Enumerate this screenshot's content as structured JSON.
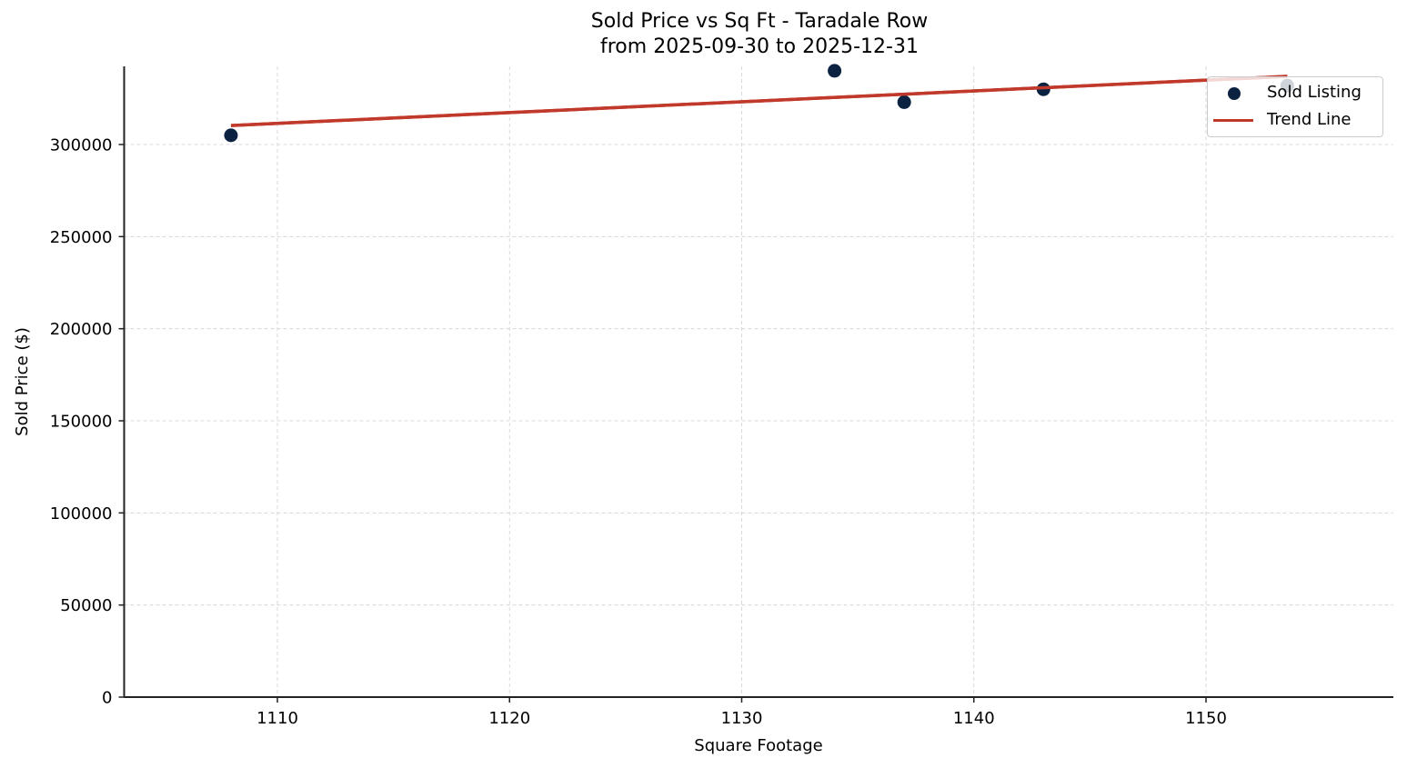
{
  "chart_data": {
    "type": "scatter",
    "title": "Sold Price vs Sq Ft - Taradale Row",
    "subtitle": "from 2025-09-30 to 2025-12-31",
    "xlabel": "Square Footage",
    "ylabel": "Sold Price ($)",
    "xlim": [
      1103.4,
      1158.0
    ],
    "ylim": [
      0,
      342000
    ],
    "x_ticks": [
      1110,
      1120,
      1130,
      1140,
      1150
    ],
    "y_ticks": [
      0,
      50000,
      100000,
      150000,
      200000,
      250000,
      300000
    ],
    "grid": true,
    "legend_position": "upper right",
    "series": [
      {
        "name": "Sold Listing",
        "kind": "scatter",
        "color": "#0b2341",
        "points": [
          {
            "x": 1108,
            "y": 305000
          },
          {
            "x": 1134,
            "y": 340000
          },
          {
            "x": 1137,
            "y": 323000
          },
          {
            "x": 1143,
            "y": 330000
          },
          {
            "x": 1153.5,
            "y": 332000
          }
        ]
      },
      {
        "name": "Trend Line",
        "kind": "line",
        "color": "#c0392b",
        "points": [
          {
            "x": 1108,
            "y": 310300
          },
          {
            "x": 1153.5,
            "y": 337000
          }
        ]
      }
    ]
  },
  "legend": {
    "items": [
      {
        "label": "Sold Listing",
        "icon": "circle-marker-icon",
        "color": "#0b2341"
      },
      {
        "label": "Trend Line",
        "icon": "line-marker-icon",
        "color": "#c0392b"
      }
    ]
  },
  "colors": {
    "point": "#0b2341",
    "trend": "#c0392b",
    "axis": "#222222",
    "grid": "#d0d0d0"
  }
}
